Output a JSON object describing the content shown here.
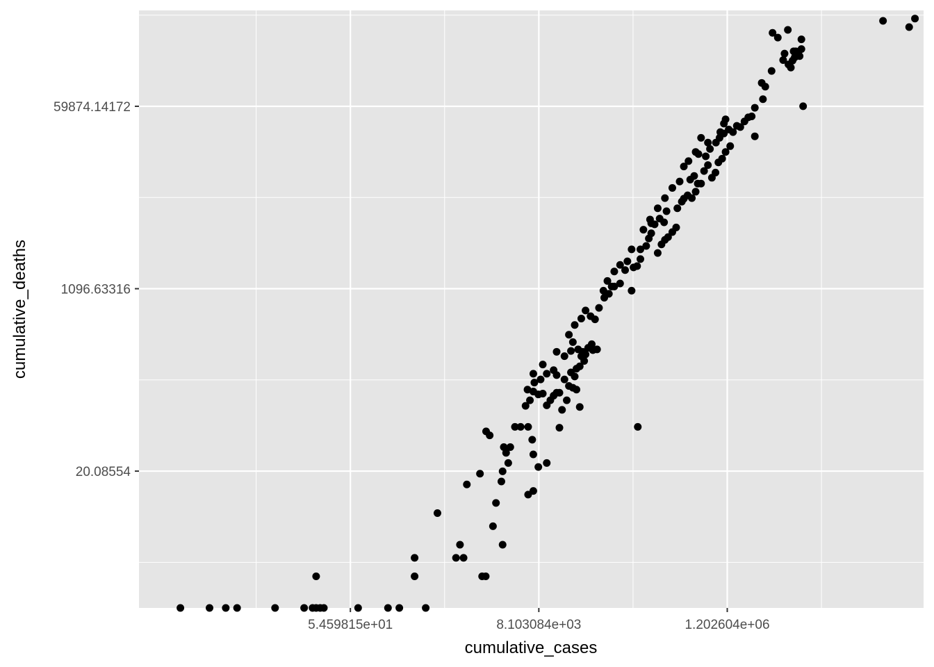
{
  "chart_data": {
    "type": "scatter",
    "title": "",
    "xlabel": "cumulative_cases",
    "ylabel": "cumulative_deaths",
    "scale": "natural-log on both axes",
    "x_ticks": [
      {
        "value": 54.59815,
        "label": "5.459815e+01"
      },
      {
        "value": 8103.084,
        "label": "8.103084e+03"
      },
      {
        "value": 1202604,
        "label": "1.202604e+06"
      }
    ],
    "y_ticks": [
      {
        "value": 20.08554,
        "label": "20.08554"
      },
      {
        "value": 1096.63316,
        "label": "1096.63316"
      },
      {
        "value": 59874.14172,
        "label": "59874.14172"
      }
    ],
    "xlim": [
      0.2,
      220000000.0
    ],
    "ylim": [
      1,
      490000
    ],
    "grid": true,
    "legend": "none",
    "colors": {
      "panel": "#e5e5e5",
      "grid": "#ffffff",
      "point": "#000000"
    },
    "points": [
      {
        "x": 0.6,
        "y": 1
      },
      {
        "x": 1.3,
        "y": 1
      },
      {
        "x": 2,
        "y": 1
      },
      {
        "x": 2.7,
        "y": 1
      },
      {
        "x": 7.4,
        "y": 1
      },
      {
        "x": 16,
        "y": 1
      },
      {
        "x": 20,
        "y": 1
      },
      {
        "x": 22,
        "y": 1
      },
      {
        "x": 24.5,
        "y": 1
      },
      {
        "x": 27,
        "y": 1
      },
      {
        "x": 67,
        "y": 1
      },
      {
        "x": 148,
        "y": 1
      },
      {
        "x": 200,
        "y": 1
      },
      {
        "x": 403,
        "y": 1
      },
      {
        "x": 22,
        "y": 2
      },
      {
        "x": 300,
        "y": 2
      },
      {
        "x": 1800,
        "y": 2
      },
      {
        "x": 1980,
        "y": 2
      },
      {
        "x": 300,
        "y": 3
      },
      {
        "x": 900,
        "y": 3
      },
      {
        "x": 1100,
        "y": 3
      },
      {
        "x": 1000,
        "y": 4
      },
      {
        "x": 3100,
        "y": 4
      },
      {
        "x": 2400,
        "y": 6
      },
      {
        "x": 550,
        "y": 8
      },
      {
        "x": 2600,
        "y": 10
      },
      {
        "x": 6100,
        "y": 12
      },
      {
        "x": 7000,
        "y": 13
      },
      {
        "x": 1200,
        "y": 15
      },
      {
        "x": 3000,
        "y": 16
      },
      {
        "x": 1700,
        "y": 19
      },
      {
        "x": 3100,
        "y": 20
      },
      {
        "x": 3600,
        "y": 24
      },
      {
        "x": 8000,
        "y": 22
      },
      {
        "x": 10000,
        "y": 24
      },
      {
        "x": 3400,
        "y": 30
      },
      {
        "x": 7000,
        "y": 29
      },
      {
        "x": 3200,
        "y": 34
      },
      {
        "x": 3800,
        "y": 34
      },
      {
        "x": 6800,
        "y": 40
      },
      {
        "x": 2000,
        "y": 48
      },
      {
        "x": 2200,
        "y": 44
      },
      {
        "x": 4300,
        "y": 53
      },
      {
        "x": 14000,
        "y": 52
      },
      {
        "x": 112000,
        "y": 53
      },
      {
        "x": 5000,
        "y": 53
      },
      {
        "x": 6100,
        "y": 53
      },
      {
        "x": 5700,
        "y": 84
      },
      {
        "x": 6400,
        "y": 95
      },
      {
        "x": 7000,
        "y": 115
      },
      {
        "x": 8000,
        "y": 108
      },
      {
        "x": 9000,
        "y": 110
      },
      {
        "x": 10000,
        "y": 85
      },
      {
        "x": 11000,
        "y": 95
      },
      {
        "x": 12000,
        "y": 105
      },
      {
        "x": 13000,
        "y": 112
      },
      {
        "x": 14000,
        "y": 112
      },
      {
        "x": 15000,
        "y": 77
      },
      {
        "x": 16000,
        "y": 150
      },
      {
        "x": 17000,
        "y": 95
      },
      {
        "x": 18000,
        "y": 130
      },
      {
        "x": 20000,
        "y": 125
      },
      {
        "x": 22000,
        "y": 120
      },
      {
        "x": 24000,
        "y": 82
      },
      {
        "x": 6000,
        "y": 120
      },
      {
        "x": 7200,
        "y": 140
      },
      {
        "x": 8500,
        "y": 150
      },
      {
        "x": 10000,
        "y": 170
      },
      {
        "x": 7000,
        "y": 170
      },
      {
        "x": 9000,
        "y": 208
      },
      {
        "x": 12000,
        "y": 184
      },
      {
        "x": 13000,
        "y": 165
      },
      {
        "x": 19000,
        "y": 175
      },
      {
        "x": 21000,
        "y": 160
      },
      {
        "x": 24000,
        "y": 200
      },
      {
        "x": 16000,
        "y": 250
      },
      {
        "x": 25000,
        "y": 250
      },
      {
        "x": 27000,
        "y": 225
      },
      {
        "x": 33000,
        "y": 325
      },
      {
        "x": 19000,
        "y": 280
      },
      {
        "x": 23000,
        "y": 290
      },
      {
        "x": 20000,
        "y": 340
      },
      {
        "x": 26000,
        "y": 275
      },
      {
        "x": 28000,
        "y": 260
      },
      {
        "x": 30000,
        "y": 300
      },
      {
        "x": 34000,
        "y": 285
      },
      {
        "x": 38000,
        "y": 290
      },
      {
        "x": 22000,
        "y": 190
      },
      {
        "x": 13000,
        "y": 275
      },
      {
        "x": 18000,
        "y": 400
      },
      {
        "x": 21000,
        "y": 495
      },
      {
        "x": 25000,
        "y": 570
      },
      {
        "x": 28000,
        "y": 680
      },
      {
        "x": 32000,
        "y": 600
      },
      {
        "x": 36000,
        "y": 560
      },
      {
        "x": 40000,
        "y": 720
      },
      {
        "x": 45000,
        "y": 1050
      },
      {
        "x": 50000,
        "y": 1300
      },
      {
        "x": 56000,
        "y": 1150
      },
      {
        "x": 46000,
        "y": 900
      },
      {
        "x": 52000,
        "y": 980
      },
      {
        "x": 60000,
        "y": 1150
      },
      {
        "x": 70000,
        "y": 1230
      },
      {
        "x": 80000,
        "y": 1650
      },
      {
        "x": 95000,
        "y": 1050
      },
      {
        "x": 110000,
        "y": 1800
      },
      {
        "x": 60000,
        "y": 1600
      },
      {
        "x": 70000,
        "y": 1850
      },
      {
        "x": 100000,
        "y": 1750
      },
      {
        "x": 120000,
        "y": 2100
      },
      {
        "x": 140000,
        "y": 2800
      },
      {
        "x": 160000,
        "y": 3700
      },
      {
        "x": 160000,
        "y": 4600
      },
      {
        "x": 190000,
        "y": 2400
      },
      {
        "x": 210000,
        "y": 2900
      },
      {
        "x": 230000,
        "y": 3200
      },
      {
        "x": 250000,
        "y": 3400
      },
      {
        "x": 280000,
        "y": 3800
      },
      {
        "x": 310000,
        "y": 4200
      },
      {
        "x": 150000,
        "y": 3300
      },
      {
        "x": 175000,
        "y": 4500
      },
      {
        "x": 200000,
        "y": 5100
      },
      {
        "x": 225000,
        "y": 4700
      },
      {
        "x": 240000,
        "y": 6000
      },
      {
        "x": 320000,
        "y": 6400
      },
      {
        "x": 360000,
        "y": 7400
      },
      {
        "x": 420000,
        "y": 8500
      },
      {
        "x": 520000,
        "y": 9200
      },
      {
        "x": 470000,
        "y": 8000
      },
      {
        "x": 380000,
        "y": 7900
      },
      {
        "x": 450000,
        "y": 12000
      },
      {
        "x": 500000,
        "y": 13000
      },
      {
        "x": 550000,
        "y": 11000
      },
      {
        "x": 600000,
        "y": 11000
      },
      {
        "x": 650000,
        "y": 14500
      },
      {
        "x": 720000,
        "y": 16500
      },
      {
        "x": 800000,
        "y": 12500
      },
      {
        "x": 880000,
        "y": 14000
      },
      {
        "x": 950000,
        "y": 17500
      },
      {
        "x": 1050000,
        "y": 19000
      },
      {
        "x": 1150000,
        "y": 22000
      },
      {
        "x": 1300000,
        "y": 25000
      },
      {
        "x": 560000,
        "y": 21000
      },
      {
        "x": 680000,
        "y": 20000
      },
      {
        "x": 760000,
        "y": 23500
      },
      {
        "x": 890000,
        "y": 27000
      },
      {
        "x": 980000,
        "y": 30000
      },
      {
        "x": 1100000,
        "y": 33000
      },
      {
        "x": 1250000,
        "y": 36000
      },
      {
        "x": 1400000,
        "y": 34000
      },
      {
        "x": 1550000,
        "y": 39000
      },
      {
        "x": 1700000,
        "y": 38000
      },
      {
        "x": 1900000,
        "y": 43000
      },
      {
        "x": 2100000,
        "y": 47000
      },
      {
        "x": 2300000,
        "y": 48000
      },
      {
        "x": 2500000,
        "y": 58000
      },
      {
        "x": 3100000,
        "y": 70000
      },
      {
        "x": 2500000,
        "y": 31000
      },
      {
        "x": 1150000,
        "y": 45000
      },
      {
        "x": 1100000,
        "y": 41000
      },
      {
        "x": 1000000,
        "y": 34000
      },
      {
        "x": 720000,
        "y": 27000
      },
      {
        "x": 600000,
        "y": 30000
      },
      {
        "x": 520000,
        "y": 22000
      },
      {
        "x": 430000,
        "y": 18000
      },
      {
        "x": 380000,
        "y": 16000
      },
      {
        "x": 340000,
        "y": 11500
      },
      {
        "x": 280000,
        "y": 10000
      },
      {
        "x": 230000,
        "y": 8000
      },
      {
        "x": 190000,
        "y": 6400
      },
      {
        "x": 155000,
        "y": 5000
      },
      {
        "x": 130000,
        "y": 4000
      },
      {
        "x": 120000,
        "y": 2600
      },
      {
        "x": 95000,
        "y": 2600
      },
      {
        "x": 85000,
        "y": 2000
      },
      {
        "x": 3000000,
        "y": 100000
      },
      {
        "x": 3300000,
        "y": 92000
      },
      {
        "x": 3900000,
        "y": 130000
      },
      {
        "x": 5300000,
        "y": 165000
      },
      {
        "x": 5500000,
        "y": 190000
      },
      {
        "x": 6100000,
        "y": 150000
      },
      {
        "x": 6500000,
        "y": 140000
      },
      {
        "x": 7000000,
        "y": 200000
      },
      {
        "x": 7400000,
        "y": 200000
      },
      {
        "x": 7900000,
        "y": 195000
      },
      {
        "x": 8600000,
        "y": 210000
      },
      {
        "x": 6800000,
        "y": 163000
      },
      {
        "x": 7200000,
        "y": 175000
      },
      {
        "x": 8200000,
        "y": 180000
      },
      {
        "x": 4600000,
        "y": 270000
      },
      {
        "x": 6000000,
        "y": 320000
      },
      {
        "x": 8600000,
        "y": 260000
      },
      {
        "x": 75000000,
        "y": 390000
      },
      {
        "x": 150000000,
        "y": 340000
      },
      {
        "x": 175000000,
        "y": 410000
      },
      {
        "x": 4000000,
        "y": 300000
      },
      {
        "x": 9000000,
        "y": 60000
      }
    ]
  }
}
